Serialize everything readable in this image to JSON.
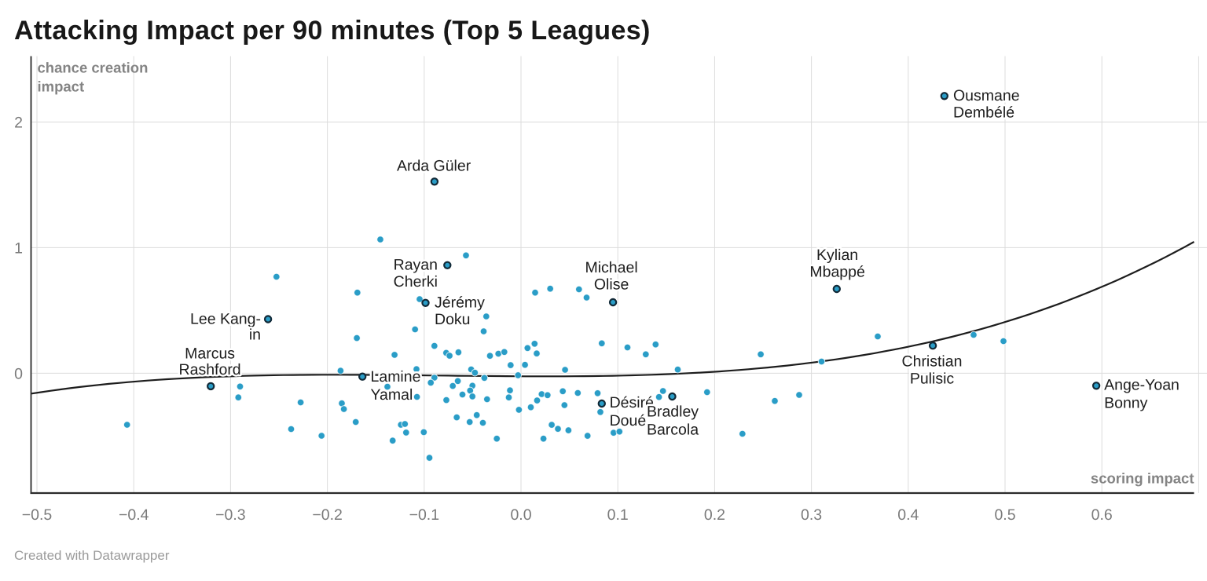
{
  "title": "Attacking Impact per 90 minutes (Top 5 Leagues)",
  "footer": {
    "credit": "Created with Datawrapper"
  },
  "colors": {
    "background": "#ffffff",
    "title": "#181818",
    "dot": "#2a9dc7",
    "dot_ring": "#122a38",
    "grid": "#dcdcdc",
    "axis": "#2b2b2b",
    "trend": "#1d1d1d",
    "tick_text": "#7a7a7a",
    "axis_title_text": "#848484",
    "point_label_text": "#1d1d1d",
    "footer_text": "#9a9a9a"
  },
  "chart_data": {
    "type": "scatter",
    "title": "Attacking Impact per 90 minutes (Top 5 Leagues)",
    "xlabel": "scoring impact",
    "ylabel": "chance creation impact",
    "ylabel_lines": [
      "chance creation",
      "impact"
    ],
    "xlim": [
      -0.5057,
      0.7086
    ],
    "ylim": [
      -0.9538,
      2.5244
    ],
    "x_ticks": [
      {
        "v": -0.5,
        "label": "−0.5"
      },
      {
        "v": -0.4,
        "label": "−0.4"
      },
      {
        "v": -0.3,
        "label": "−0.3"
      },
      {
        "v": -0.2,
        "label": "−0.2"
      },
      {
        "v": -0.1,
        "label": "−0.1"
      },
      {
        "v": 0.0,
        "label": "0.0"
      },
      {
        "v": 0.1,
        "label": "0.1"
      },
      {
        "v": 0.2,
        "label": "0.2"
      },
      {
        "v": 0.3,
        "label": "0.3"
      },
      {
        "v": 0.4,
        "label": "0.4"
      },
      {
        "v": 0.5,
        "label": "0.5"
      },
      {
        "v": 0.6,
        "label": "0.6"
      }
    ],
    "x_grid_extra": [
      0.7
    ],
    "y_ticks": [
      {
        "v": 0,
        "label": "0"
      },
      {
        "v": 1,
        "label": "1"
      },
      {
        "v": 2,
        "label": "2"
      }
    ],
    "grid": true,
    "legend": null,
    "trend_line": {
      "type": "cubic_fit",
      "coeffs": [
        2.3935,
        0.6008,
        -0.0353,
        -0.024
      ],
      "x_start": -0.5057,
      "x_end": 0.6952
    },
    "series": [
      {
        "name": "players",
        "points": [
          [
            -0.2526,
            0.7681
          ],
          [
            -0.1453,
            1.065
          ],
          [
            -0.0568,
            0.9384
          ],
          [
            -0.169,
            0.6416
          ],
          [
            -0.1047,
            0.59
          ],
          [
            0.0146,
            0.6416
          ],
          [
            0.0302,
            0.6728
          ],
          [
            0.0599,
            0.6681
          ],
          [
            0.0678,
            0.6025
          ],
          [
            -0.0359,
            0.4525
          ],
          [
            -0.1094,
            0.3494
          ],
          [
            -0.0386,
            0.3337
          ],
          [
            0.3685,
            0.2931
          ],
          [
            0.4675,
            0.3056
          ],
          [
            -0.1696,
            0.28
          ],
          [
            -0.1306,
            0.1469
          ],
          [
            -0.0895,
            0.2175
          ],
          [
            -0.1864,
            0.0197
          ],
          [
            -0.108,
            0.0322
          ],
          [
            -0.0773,
            0.1625
          ],
          [
            -0.0738,
            0.1394
          ],
          [
            -0.0646,
            0.1666
          ],
          [
            -0.0321,
            0.1387
          ],
          [
            -0.0234,
            0.1556
          ],
          [
            -0.0172,
            0.1694
          ],
          [
            -0.0107,
            0.0644
          ],
          [
            0.0041,
            0.0669
          ],
          [
            0.0067,
            0.2006
          ],
          [
            0.014,
            0.235
          ],
          [
            0.0162,
            0.1575
          ],
          [
            0.0455,
            0.0275
          ],
          [
            0.0834,
            0.2384
          ],
          [
            0.11,
            0.2056
          ],
          [
            0.139,
            0.2291
          ],
          [
            0.1289,
            0.1509
          ],
          [
            0.1619,
            0.0291
          ],
          [
            0.2476,
            0.1509
          ],
          [
            0.3105,
            0.0931
          ],
          [
            0.4984,
            0.2556
          ],
          [
            -0.0515,
            0.0306
          ],
          [
            -0.0476,
            0.0044
          ],
          [
            -0.0378,
            -0.0369
          ],
          [
            -0.003,
            -0.0156
          ],
          [
            -0.0895,
            -0.035
          ],
          [
            -0.0932,
            -0.075
          ],
          [
            -0.0653,
            -0.0619
          ],
          [
            -0.0705,
            -0.1013
          ],
          [
            -0.0502,
            -0.0994
          ],
          [
            -0.0525,
            -0.1375
          ],
          [
            -0.138,
            -0.1075
          ],
          [
            -0.2902,
            -0.1056
          ],
          [
            -0.292,
            -0.1925
          ],
          [
            -0.1851,
            -0.2397
          ],
          [
            -0.2276,
            -0.2319
          ],
          [
            -0.0605,
            -0.1694
          ],
          [
            -0.0502,
            -0.1844
          ],
          [
            -0.1075,
            -0.1881
          ],
          [
            -0.0771,
            -0.2138
          ],
          [
            -0.0351,
            -0.2069
          ],
          [
            -0.0114,
            -0.1363
          ],
          [
            -0.0126,
            -0.1928
          ],
          [
            0.0213,
            -0.1663
          ],
          [
            0.0274,
            -0.1744
          ],
          [
            0.0432,
            -0.1431
          ],
          [
            0.0587,
            -0.1569
          ],
          [
            0.0791,
            -0.1588
          ],
          [
            0.0166,
            -0.2169
          ],
          [
            0.0449,
            -0.2538
          ],
          [
            -0.0021,
            -0.2906
          ],
          [
            0.0101,
            -0.2709
          ],
          [
            0.082,
            -0.3087
          ],
          [
            0.1467,
            -0.1413
          ],
          [
            0.1425,
            -0.1897
          ],
          [
            0.1922,
            -0.1506
          ],
          [
            0.2622,
            -0.2209
          ],
          [
            0.2873,
            -0.1725
          ],
          [
            -0.183,
            -0.285
          ],
          [
            -0.4069,
            -0.41
          ],
          [
            -0.1707,
            -0.3881
          ],
          [
            -0.124,
            -0.41
          ],
          [
            -0.1199,
            -0.4038
          ],
          [
            -0.1187,
            -0.4719
          ],
          [
            -0.1326,
            -0.5366
          ],
          [
            -0.1004,
            -0.4688
          ],
          [
            -0.0946,
            -0.6731
          ],
          [
            -0.0664,
            -0.3513
          ],
          [
            -0.053,
            -0.3881
          ],
          [
            -0.0457,
            -0.3334
          ],
          [
            -0.0394,
            -0.3944
          ],
          [
            -0.025,
            -0.5209
          ],
          [
            0.0232,
            -0.5206
          ],
          [
            0.0317,
            -0.4106
          ],
          [
            0.0381,
            -0.4425
          ],
          [
            0.049,
            -0.4544
          ],
          [
            0.0687,
            -0.4981
          ],
          [
            0.0956,
            -0.4741
          ],
          [
            0.1017,
            -0.4647
          ],
          [
            -0.2374,
            -0.4444
          ],
          [
            -0.206,
            -0.4975
          ],
          [
            0.2287,
            -0.4819
          ]
        ]
      }
    ],
    "labeled_points": [
      {
        "name": "Ousmane Dembélé",
        "x": 0.4373,
        "y": 2.2069,
        "lines": [
          "Ousmane",
          "Dembélé"
        ],
        "align": "left",
        "dx": 11.2,
        "dys": [
          0,
          21.5
        ]
      },
      {
        "name": "Arda Güler",
        "x": -0.0894,
        "y": 1.5256,
        "lines": [
          "Arda Güler"
        ],
        "align": "center",
        "dx": -0.8,
        "dys": [
          -19.5
        ]
      },
      {
        "name": "Rayan Cherki",
        "x": -0.0761,
        "y": 0.86,
        "lines": [
          "Rayan",
          "Cherki"
        ],
        "align": "right",
        "dx": -12.3,
        "dys": [
          0,
          21.5
        ]
      },
      {
        "name": "Jérémy Doku",
        "x": -0.0986,
        "y": 0.56,
        "lines": [
          "Jérémy",
          "Doku"
        ],
        "align": "left",
        "dx": 11.5,
        "dys": [
          0,
          21.5
        ]
      },
      {
        "name": "Michael Olise",
        "x": 0.095,
        "y": 0.565,
        "lines": [
          "Michael",
          "Olise"
        ],
        "align": "center",
        "dx": -2.0,
        "dys": [
          -44,
          -22.5
        ]
      },
      {
        "name": "Kylian Mbappé",
        "x": 0.3261,
        "y": 0.6712,
        "lines": [
          "Kylian",
          "Mbappé"
        ],
        "align": "center",
        "dx": 0.8,
        "dys": [
          -43,
          -21.5
        ]
      },
      {
        "name": "Lee Kang-in",
        "x": -0.2613,
        "y": 0.4306,
        "lines": [
          "Lee Kang-",
          "in"
        ],
        "align": "right",
        "dx": -9.1,
        "dys": [
          0,
          20
        ]
      },
      {
        "name": "Marcus Rashford",
        "x": -0.3205,
        "y": -0.1031,
        "lines": [
          "Marcus",
          "Rashford"
        ],
        "align": "center",
        "dx": -1.1,
        "dys": [
          -41.4,
          -20.9
        ]
      },
      {
        "name": "Lamine Yamal",
        "x": -0.1638,
        "y": -0.0272,
        "lines": [
          "Lamine",
          "Yamal"
        ],
        "align": "left",
        "dx": 10.3,
        "dys": [
          0.5,
          23.5
        ]
      },
      {
        "name": "Désiré Doué",
        "x": 0.0834,
        "y": -0.2413,
        "lines": [
          "Désiré",
          "Doué"
        ],
        "align": "left",
        "dx": 9.8,
        "dys": [
          -1,
          22
        ]
      },
      {
        "name": "Bradley Barcola",
        "x": 0.1562,
        "y": -0.185,
        "lines": [
          "Bradley",
          "Barcola"
        ],
        "align": "center",
        "dx": 0.5,
        "dys": [
          19.5,
          42.5
        ]
      },
      {
        "name": "Christian Pulisic",
        "x": 0.4254,
        "y": 0.22,
        "lines": [
          "Christian",
          "Pulisic"
        ],
        "align": "center",
        "dx": -1.1,
        "dys": [
          20.3,
          42.3
        ]
      },
      {
        "name": "Ange-Yoan Bonny",
        "x": 0.5942,
        "y": -0.0991,
        "lines": [
          "Ange-Yoan",
          "Bonny"
        ],
        "align": "left",
        "dx": 10.0,
        "dys": [
          -0.8,
          22.2
        ]
      }
    ]
  }
}
